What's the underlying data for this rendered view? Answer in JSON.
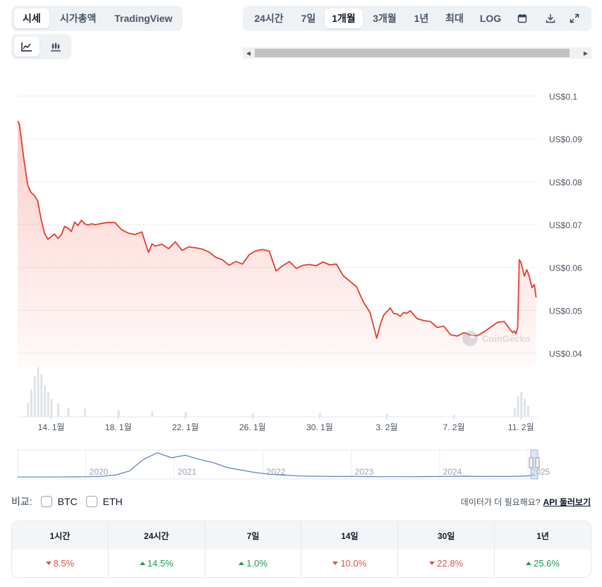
{
  "view_tabs": [
    {
      "label": "시세",
      "active": true
    },
    {
      "label": "시가총액",
      "active": false
    },
    {
      "label": "TradingView",
      "active": false
    }
  ],
  "chart_style": [
    {
      "icon": "line-chart-icon",
      "active": true
    },
    {
      "icon": "candlestick-chart-icon",
      "active": false
    }
  ],
  "range_tabs": [
    {
      "label": "24시간",
      "active": false
    },
    {
      "label": "7일",
      "active": false
    },
    {
      "label": "1개월",
      "active": true
    },
    {
      "label": "3개월",
      "active": false
    },
    {
      "label": "1년",
      "active": false
    },
    {
      "label": "최대",
      "active": false
    },
    {
      "label": "LOG",
      "active": false
    }
  ],
  "toolbar_icons": [
    "calendar-icon",
    "download-icon",
    "expand-icon"
  ],
  "chart_data": {
    "type": "area",
    "title": "",
    "xlabel": "",
    "ylabel": "",
    "y_tick_labels": [
      "US$0.1",
      "US$0.09",
      "US$0.08",
      "US$0.07",
      "US$0.06",
      "US$0.05",
      "US$0.04"
    ],
    "y_ticks": [
      0.1,
      0.09,
      0.08,
      0.07,
      0.06,
      0.05,
      0.04
    ],
    "ylim": [
      0.04,
      0.1
    ],
    "x_tick_labels": [
      "14. 1월",
      "18. 1월",
      "22. 1월",
      "26. 1월",
      "30. 1월",
      "3. 2월",
      "7. 2월",
      "11. 2월"
    ],
    "x_tick_days": [
      2,
      6,
      10,
      14,
      18,
      22,
      26,
      30
    ],
    "xlim_days": [
      0,
      31
    ],
    "grid": true,
    "line_color": "#ea3a2f",
    "series": [
      {
        "days": [
          0,
          0.1,
          0.2,
          0.4,
          0.6,
          0.8,
          1.0,
          1.2,
          1.4,
          1.6,
          1.8,
          2.0,
          2.2,
          2.4,
          2.6,
          2.8,
          3.0,
          3.2,
          3.4,
          3.6,
          3.8,
          4.0,
          4.2,
          4.4,
          4.6,
          4.8,
          5.0,
          5.4,
          5.8,
          6.2,
          6.6,
          7.0,
          7.4,
          7.8,
          8.0,
          8.2,
          8.6,
          9.0,
          9.4,
          9.8,
          10.2,
          10.6,
          11.0,
          11.4,
          11.8,
          12.2,
          12.6,
          13.0,
          13.4,
          13.8,
          14.2,
          14.6,
          15.0,
          15.4,
          15.8,
          16.2,
          16.6,
          17.0,
          17.4,
          17.8,
          18.2,
          18.6,
          19.0,
          19.4,
          19.8,
          20.2,
          20.6,
          21.0,
          21.4,
          21.6,
          21.8,
          22.0,
          22.1,
          22.2,
          22.4,
          22.6,
          22.8,
          23.0,
          23.2,
          23.4,
          23.8,
          24.2,
          24.6,
          25.0,
          25.4,
          25.8,
          26.2,
          26.6,
          27.0,
          27.4,
          27.8,
          28.2,
          28.6,
          29.0,
          29.3,
          29.5,
          29.6,
          29.7,
          29.8,
          29.9,
          30.0,
          30.1,
          30.2,
          30.35,
          30.5,
          30.65,
          30.8,
          30.9
        ],
        "values": [
          0.0942,
          0.0935,
          0.0905,
          0.0845,
          0.0792,
          0.0775,
          0.0768,
          0.0755,
          0.0712,
          0.068,
          0.0666,
          0.0672,
          0.0678,
          0.0668,
          0.0676,
          0.0696,
          0.0692,
          0.0684,
          0.0706,
          0.0698,
          0.071,
          0.0702,
          0.0699,
          0.0702,
          0.07,
          0.0701,
          0.0703,
          0.0705,
          0.0705,
          0.0688,
          0.068,
          0.0677,
          0.0683,
          0.0635,
          0.0655,
          0.065,
          0.0654,
          0.0644,
          0.066,
          0.064,
          0.0648,
          0.0646,
          0.0643,
          0.0636,
          0.0624,
          0.0618,
          0.0605,
          0.0614,
          0.0608,
          0.063,
          0.0639,
          0.0642,
          0.0638,
          0.0592,
          0.0604,
          0.0614,
          0.0598,
          0.0605,
          0.0607,
          0.0604,
          0.0613,
          0.0606,
          0.0608,
          0.0581,
          0.0568,
          0.0555,
          0.052,
          0.0495,
          0.0435,
          0.0465,
          0.0488,
          0.0497,
          0.05,
          0.0506,
          0.0493,
          0.0492,
          0.0486,
          0.0495,
          0.0493,
          0.0499,
          0.0481,
          0.0476,
          0.0474,
          0.046,
          0.0463,
          0.0443,
          0.044,
          0.0448,
          0.0442,
          0.0441,
          0.045,
          0.0461,
          0.0472,
          0.0474,
          0.0458,
          0.0448,
          0.0452,
          0.0445,
          0.046,
          0.0618,
          0.0612,
          0.0595,
          0.058,
          0.0595,
          0.0578,
          0.0553,
          0.056,
          0.053
        ]
      }
    ],
    "volume_days": [
      0.6,
      0.8,
      1.0,
      1.2,
      1.4,
      1.6,
      1.8,
      2.0,
      2.4,
      3.0,
      4.0,
      6.0,
      8.0,
      10.0,
      14.0,
      18.0,
      22.0,
      26.0,
      29.6,
      29.8,
      30.0,
      30.2,
      30.4
    ],
    "volume_values": [
      30,
      60,
      90,
      110,
      95,
      70,
      55,
      40,
      30,
      20,
      18,
      15,
      12,
      10,
      8,
      8,
      6,
      5,
      20,
      45,
      55,
      40,
      25
    ],
    "watermark": "CoinGecko",
    "navigator": {
      "year_labels": [
        "2020",
        "2021",
        "2022",
        "2023",
        "2024",
        "2025"
      ],
      "line_color": "#5b7fbd",
      "values": [
        0.6,
        0.6,
        0.6,
        0.7,
        0.8,
        1.0,
        1.5,
        3.0,
        8.0,
        22.0,
        30.0,
        24.0,
        27.0,
        22.0,
        18.0,
        12.0,
        9.0,
        6.0,
        4.0,
        3.0,
        2.0,
        1.6,
        1.5,
        1.3,
        1.4,
        1.2,
        1.0,
        1.1,
        1.0,
        1.2,
        1.3,
        1.4,
        1.6,
        1.4,
        1.5,
        1.3,
        1.6,
        2.6
      ]
    }
  },
  "compare": {
    "label": "비교:",
    "options": [
      "BTC",
      "ETH"
    ]
  },
  "api_note": {
    "text": "데이터가 더 필요해요?",
    "link": "API 둘러보기"
  },
  "performance": [
    {
      "period": "1시간",
      "value": "8.5%",
      "direction": "down"
    },
    {
      "period": "24시간",
      "value": "14.5%",
      "direction": "up"
    },
    {
      "period": "7일",
      "value": "1.0%",
      "direction": "up"
    },
    {
      "period": "14일",
      "value": "10.0%",
      "direction": "down"
    },
    {
      "period": "30일",
      "value": "22.8%",
      "direction": "down"
    },
    {
      "period": "1년",
      "value": "25.6%",
      "direction": "up"
    }
  ]
}
